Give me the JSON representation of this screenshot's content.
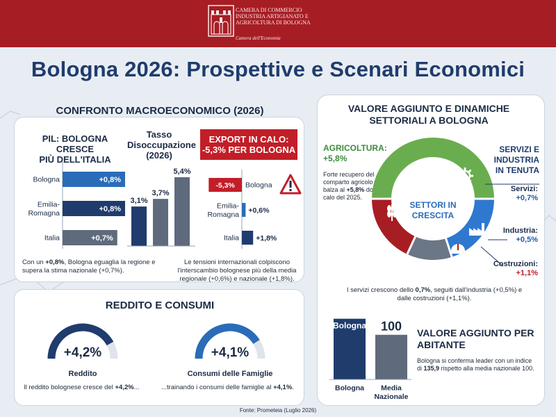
{
  "header": {
    "org_name_lines": [
      "CAMERA DI COMMERCIO",
      "INDUSTRIA ARTIGIANATO E",
      "AGRICOLTURA DI BOLOGNA"
    ],
    "org_subtitle": "Camera dell'Economia"
  },
  "title": "Bologna 2026: Prospettive e Scenari Economici",
  "macro": {
    "section_title": "CONFRONTO MACROECONOMICO (2026)",
    "pil_title_lines": [
      "PIL: BOLOGNA CRESCE",
      "PIÙ DELL'ITALIA"
    ],
    "pil_note_parts": [
      "Con un ",
      "+0,8%",
      ", Bologna eguaglia la regione e supera la stima nazionale (+0,7%)."
    ],
    "disoccupazione_title_lines": [
      "Tasso",
      "Disoccupazione",
      "(2026)"
    ],
    "export_title_lines": [
      "EXPORT IN CALO:",
      "-5,3% PER BOLOGNA"
    ],
    "export_note": "Le tensioni internazionali colpiscono l'interscambio bolognese più della media regionale (+0,6%) e nazionale (+1,8%)."
  },
  "reddito": {
    "section_title": "REDDITO E CONSUMI",
    "gauges": [
      {
        "value_label": "+4,2%",
        "label": "Reddito",
        "caption_parts": [
          "Il reddito bolognese cresce del ",
          "+4,2%",
          "..."
        ]
      },
      {
        "value_label": "+4,1%",
        "label": "Consumi delle Famiglie",
        "caption_parts": [
          "...trainando i consumi delle famiglie al ",
          "+4,1%",
          "."
        ]
      }
    ]
  },
  "settori": {
    "title_lines": [
      "VALORE AGGIUNTO E DINAMICHE",
      "SETTORIALI A BOLOGNA"
    ],
    "agri_head_lines": [
      "AGRICOLTURA:",
      "+5,8%"
    ],
    "agri_text_parts": [
      "Forte recupero del comparto agricolo che balza al ",
      "+5,8%",
      " dopo il calo del 2025."
    ],
    "servizi_head_lines": [
      "SERVIZI E",
      "INDUSTRIA",
      "IN TENUTA"
    ],
    "center_label_lines": [
      "SETTORI IN",
      "CRESCITA"
    ],
    "labels": [
      {
        "name": "Servizi:",
        "value": "+0,7%"
      },
      {
        "name": "Industria:",
        "value": "+0,5%"
      },
      {
        "name": "Costruzioni:",
        "value": "+1,1%"
      }
    ],
    "note_parts": [
      "I servizi crescono dello ",
      "0,7%",
      ", seguiti dall'industria (+0,5%) e dalle costruzioni (+1,1%)."
    ]
  },
  "valore_aggiunto": {
    "title_lines": [
      "VALORE AGGIUNTO PER",
      "ABITANTE"
    ],
    "text_parts": [
      "Bologna si conferma leader con un indice di ",
      "135,9",
      " rispetto alla media nazionale 100."
    ]
  },
  "source": "Fonte: Prometeia (Luglio 2026)",
  "colors": {
    "header_red": "#a71d24",
    "title_blue": "#1f3c6d",
    "bologna_blue": "#2a6cb8",
    "dark_navy": "#1f3c6d",
    "slate": "#5f6b7c",
    "export_red": "#c21e27",
    "agri_green": "#6aad4f",
    "costruzioni_red": "#a71d24",
    "servizi_blue": "#2f78d0",
    "industria_gray": "#6b7686"
  },
  "chart_data": [
    {
      "type": "bar",
      "orientation": "horizontal",
      "title": "PIL: BOLOGNA CRESCE PIÙ DELL'ITALIA",
      "categories": [
        "Bologna",
        "Emilia-Romagna",
        "Italia"
      ],
      "category_labels": [
        [
          "Bologna"
        ],
        [
          "Emilia-",
          "Romagna"
        ],
        [
          "Italia"
        ]
      ],
      "values": [
        0.8,
        0.8,
        0.7
      ],
      "value_labels": [
        "+0,8%",
        "+0,8%",
        "+0,7%"
      ],
      "unit": "%"
    },
    {
      "type": "bar",
      "orientation": "vertical",
      "title": "Tasso Disoccupazione (2026)",
      "categories": [
        "Bologna",
        "Emilia-Romagna",
        "Italia"
      ],
      "values": [
        3.1,
        3.7,
        5.4
      ],
      "value_labels": [
        "3,1%",
        "3,7%",
        "5,4%"
      ],
      "unit": "%"
    },
    {
      "type": "bar",
      "orientation": "horizontal",
      "title": "EXPORT IN CALO: -5,3% PER BOLOGNA",
      "categories": [
        "Bologna",
        "Emilia-Romagna",
        "Italia"
      ],
      "category_labels": [
        [
          "Bologna"
        ],
        [
          "Emilia-",
          "Romagna"
        ],
        [
          "Italia"
        ]
      ],
      "values": [
        -5.3,
        0.6,
        1.8
      ],
      "value_labels": [
        "-5,3%",
        "+0,6%",
        "+1,8%"
      ],
      "unit": "%"
    },
    {
      "type": "pie",
      "style": "donut",
      "title": "SETTORI IN CRESCITA",
      "slices": [
        {
          "name": "Agricoltura",
          "value": 5.8,
          "label": "+5,8%"
        },
        {
          "name": "Servizi",
          "value": 0.7,
          "label": "+0,7%"
        },
        {
          "name": "Industria",
          "value": 0.5,
          "label": "+0,5%"
        },
        {
          "name": "Costruzioni",
          "value": 1.1,
          "label": "+1,1%"
        }
      ],
      "unit": "%"
    },
    {
      "type": "bar",
      "orientation": "vertical",
      "title": "VALORE AGGIUNTO PER ABITANTE",
      "categories": [
        "Bologna",
        "Media Nazionale"
      ],
      "category_labels": [
        [
          "Bologna"
        ],
        [
          "Media",
          "Nazionale"
        ]
      ],
      "values": [
        135.9,
        100
      ],
      "value_labels": [
        "Bologna",
        "100"
      ]
    },
    {
      "type": "gauge",
      "title": "REDDITO E CONSUMI",
      "series": [
        {
          "name": "Reddito",
          "value": 4.2,
          "label": "+4,2%"
        },
        {
          "name": "Consumi delle Famiglie",
          "value": 4.1,
          "label": "+4,1%"
        }
      ],
      "unit": "%"
    }
  ]
}
